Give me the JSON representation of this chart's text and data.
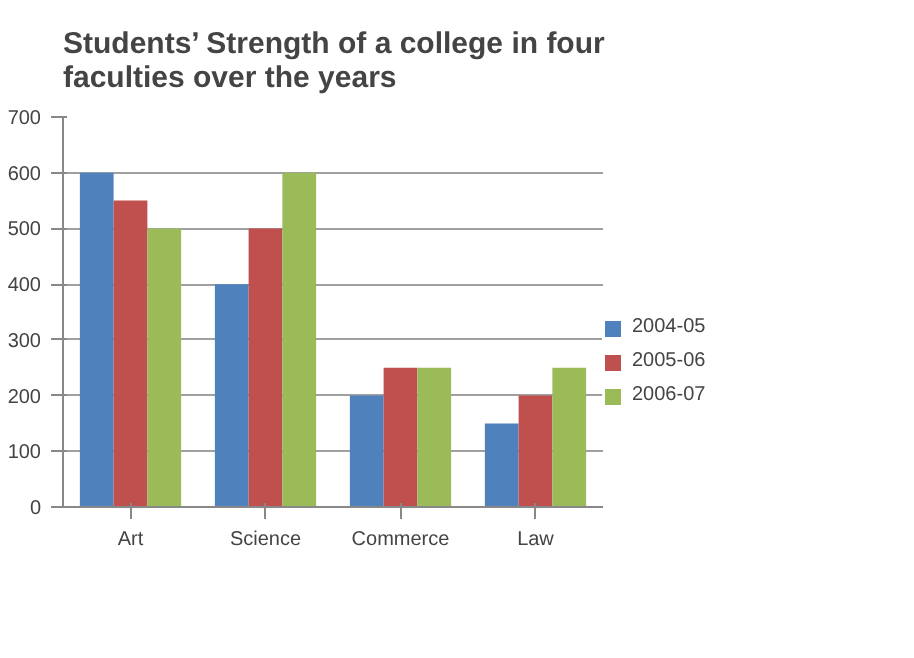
{
  "chart_data": {
    "type": "bar",
    "title": "Students’ Strength of a college in four faculties over the years",
    "categories": [
      "Art",
      "Science",
      "Commerce",
      "Law"
    ],
    "series": [
      {
        "name": "2004-05",
        "color": "#4f81bd",
        "values": [
          600,
          400,
          200,
          150
        ]
      },
      {
        "name": "2005-06",
        "color": "#c0504d",
        "values": [
          550,
          500,
          250,
          200
        ]
      },
      {
        "name": "2006-07",
        "color": "#9bbb59",
        "values": [
          500,
          600,
          250,
          250
        ]
      }
    ],
    "ylim": [
      0,
      700
    ],
    "yticks": [
      0,
      100,
      200,
      300,
      400,
      500,
      600,
      700
    ],
    "grid": "y",
    "legend": "right"
  }
}
